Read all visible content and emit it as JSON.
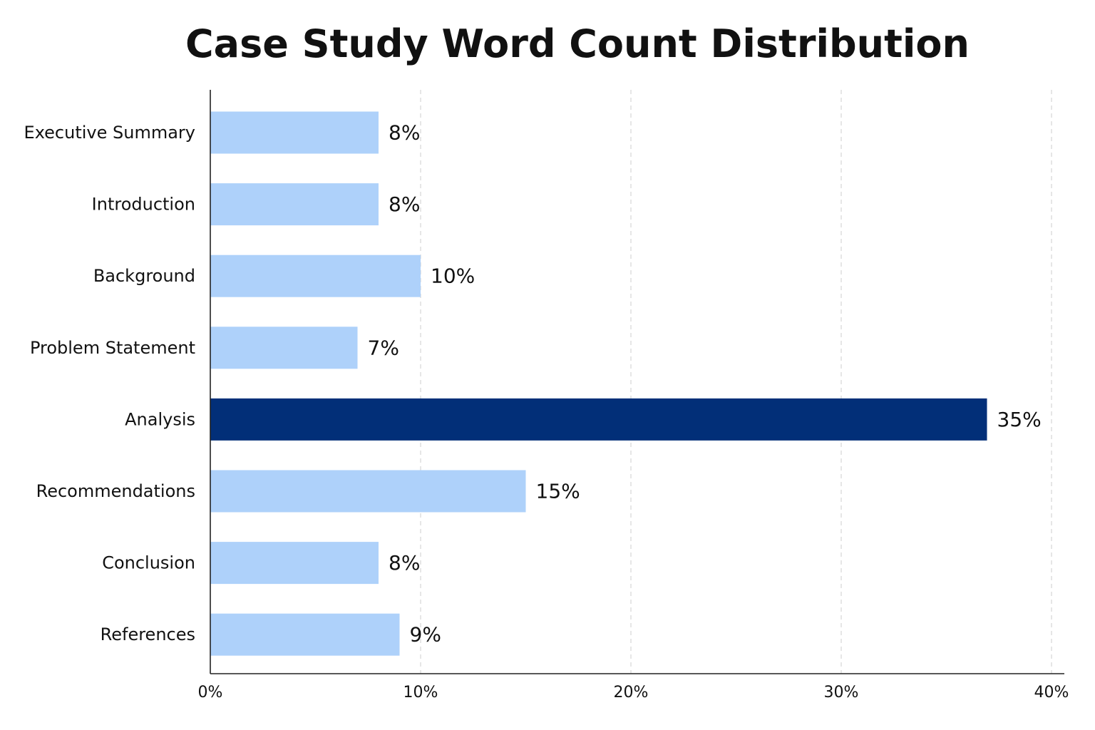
{
  "chart_data": {
    "type": "bar",
    "orientation": "horizontal",
    "title": "Case Study Word Count Distribution",
    "xlabel": "",
    "ylabel": "",
    "categories": [
      "Executive Summary",
      "Introduction",
      "Background",
      "Problem Statement",
      "Analysis",
      "Recommendations",
      "Conclusion",
      "References"
    ],
    "values": [
      8,
      8,
      10,
      7,
      35,
      15,
      8,
      9
    ],
    "value_labels": [
      "8%",
      "8%",
      "10%",
      "7%",
      "35%",
      "15%",
      "8%",
      "9%"
    ],
    "xlim": [
      0,
      40
    ],
    "x_ticks": [
      0,
      10,
      20,
      30,
      40
    ],
    "x_tick_labels": [
      "0%",
      "10%",
      "20%",
      "30%",
      "40%"
    ],
    "grid": "vertical-dashed",
    "legend": "none",
    "colors": {
      "default_bar": "#aed1fa",
      "highlight_bar": "#022f78",
      "highlight_category": "Analysis",
      "axis": "#222222",
      "grid": "#d6d6d6"
    }
  }
}
